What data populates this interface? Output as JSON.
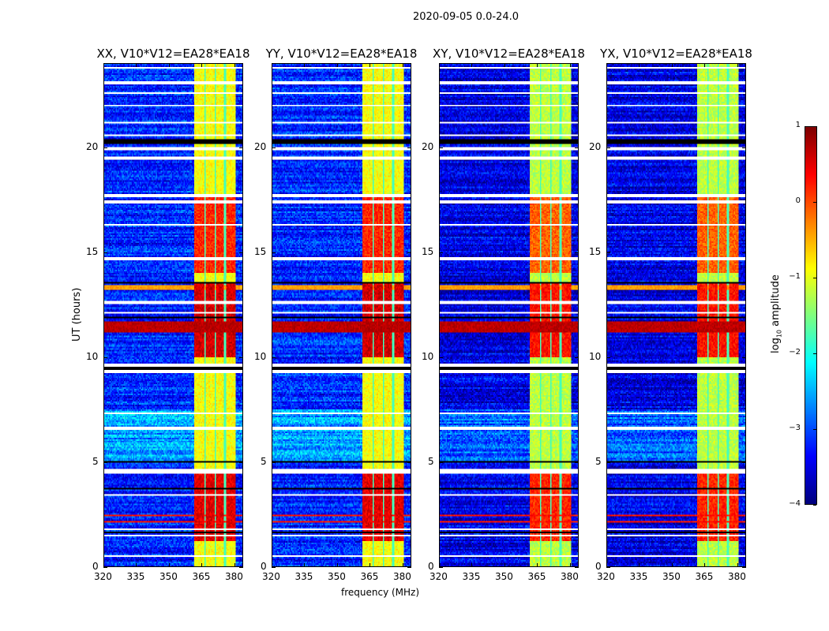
{
  "chart_data": {
    "type": "heatmap",
    "title": "2020-09-05 0.0-24.0",
    "xlabel": "frequency (MHz)",
    "ylabel": "UT (hours)",
    "xlim": [
      320,
      384
    ],
    "ylim": [
      0,
      24
    ],
    "xticks": [
      320,
      335,
      350,
      365,
      380
    ],
    "yticks": [
      0,
      5,
      10,
      15,
      20
    ],
    "colormap": "jet",
    "panels": [
      {
        "title": "XX, V10*V12=EA28*EA18"
      },
      {
        "title": "YY, V10*V12=EA28*EA18"
      },
      {
        "title": "XY, V10*V12=EA28*EA18"
      },
      {
        "title": "YX, V10*V12=EA28*EA18"
      }
    ],
    "colorbar": {
      "label_prefix": "log",
      "label_sub": "10",
      "label_suffix": " amplitude",
      "range": [
        -4,
        1
      ],
      "ticks": [
        1,
        0,
        -1,
        -2,
        -3,
        -4
      ],
      "tick_labels": [
        "1",
        "0",
        "−1",
        "−2",
        "−3",
        "−4"
      ]
    },
    "features": {
      "background_log_amp": -3.2,
      "rfi_band_mhz": [
        361.5,
        381
      ],
      "rfi_subband_gaps_mhz": [
        366.5,
        371.5,
        376
      ],
      "rfi_strong_hours": [
        [
          1.2,
          4.4,
          0.5
        ],
        [
          10.0,
          13.5,
          0.6
        ],
        [
          14.0,
          17.6,
          0.2
        ]
      ],
      "broadband_rfi_hours": [
        [
          11.2,
          11.7,
          0.7
        ],
        [
          13.2,
          13.4,
          -0.4
        ],
        [
          2.1,
          2.15,
          0.3
        ],
        [
          2.4,
          2.45,
          0.3
        ]
      ],
      "flagged_white_hours": [
        0.5,
        1.45,
        1.75,
        3.4,
        4.5,
        4.6,
        6.6,
        7.3,
        9.3,
        9.6,
        12.1,
        12.6,
        14.7,
        16.3,
        17.4,
        17.7,
        19.5,
        19.9,
        20.0,
        20.6,
        21.2,
        22.0,
        22.6,
        23.1,
        23.8
      ],
      "zero_black_hours": [
        1.6,
        3.7,
        5.0,
        9.45,
        11.9,
        13.55,
        20.25,
        20.35
      ]
    }
  }
}
